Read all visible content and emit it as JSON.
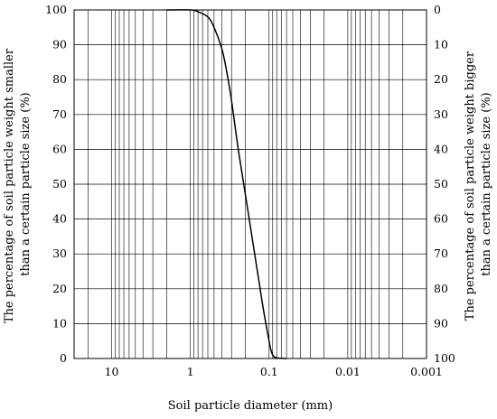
{
  "chart_data": {
    "type": "line",
    "title": "",
    "xlabel": "Soil particle diameter (mm)",
    "ylabel_left": "The percentage of soil particle weight smaller than a certain particle size (%)",
    "ylabel_right": "The percentage of soil particle weight bigger than a certain particle size (%)",
    "ylabel_left_lines": [
      "The percentage of soil particle weight smaller",
      "than a certain particle size (%)"
    ],
    "ylabel_right_lines": [
      "The percentage of soil particle weight bigger",
      "than a certain particle size (%)"
    ],
    "x_scale": "log",
    "x_reversed": true,
    "xlim": [
      30,
      0.001
    ],
    "ylim": [
      0,
      100
    ],
    "x_ticks": [
      10,
      1,
      0.1,
      0.01,
      0.001
    ],
    "x_tick_labels": [
      "10",
      "1",
      "0.1",
      "0.01",
      "0.001"
    ],
    "y_ticks": [
      0,
      10,
      20,
      30,
      40,
      50,
      60,
      70,
      80,
      90,
      100
    ],
    "y_left_tick_labels": [
      "0",
      "10",
      "20",
      "30",
      "40",
      "50",
      "60",
      "70",
      "80",
      "90",
      "100"
    ],
    "y_right_tick_labels": [
      "100",
      "90",
      "80",
      "70",
      "60",
      "50",
      "40",
      "30",
      "20",
      "10",
      "0"
    ],
    "grid": true,
    "line_color": "#000000",
    "series": [
      {
        "x": [
          2.0,
          1.0,
          0.8,
          0.6,
          0.5,
          0.4,
          0.35,
          0.3,
          0.25,
          0.2,
          0.15,
          0.12,
          0.1,
          0.095,
          0.09,
          0.085,
          0.08,
          0.075,
          0.07,
          0.065,
          0.06
        ],
        "y": [
          100,
          100,
          99.5,
          98,
          95,
          89,
          83,
          74,
          61,
          47,
          29,
          15,
          5,
          2.5,
          1,
          0.4,
          0.2,
          0.1,
          0.05,
          0.02,
          0
        ]
      }
    ]
  }
}
